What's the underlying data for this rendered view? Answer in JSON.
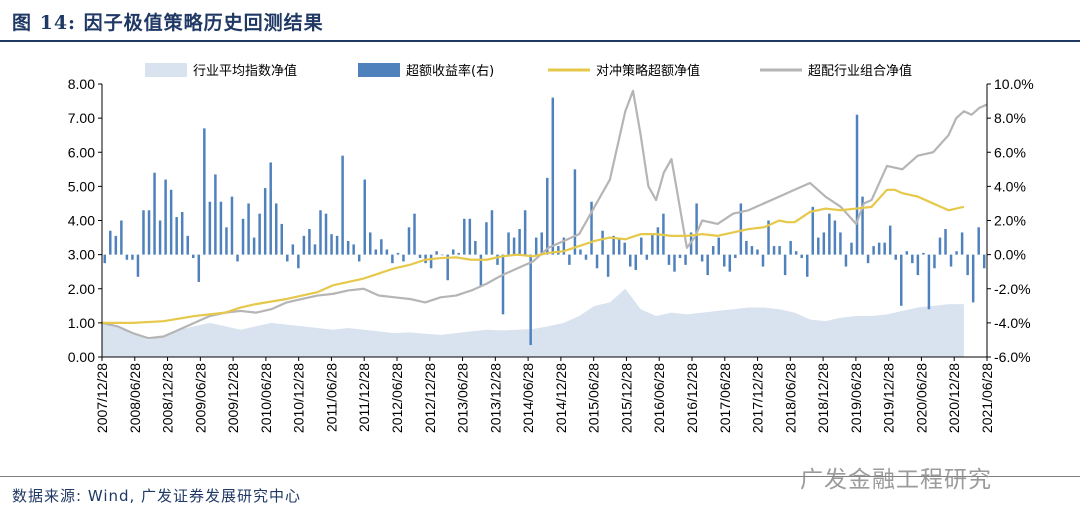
{
  "header": {
    "title": "图  14: 因子极值策略历史回测结果"
  },
  "footer": {
    "source": "数据来源: Wind, 广发证券发展研究中心",
    "watermark": "广发金融工程研究"
  },
  "colors": {
    "area": "#d9e3f0",
    "bar": "#4f81bd",
    "hedge_line": "#e6c84a",
    "industry_line": "#b5b5b5",
    "title": "#1f3864"
  },
  "chart_data": {
    "type": "line",
    "title": "",
    "x_start": "2007/12/28",
    "x_end": "2021/06/28",
    "x_tick_labels": [
      "2007/12/28",
      "2008/06/28",
      "2008/12/28",
      "2009/06/28",
      "2009/12/28",
      "2010/06/28",
      "2010/12/28",
      "2011/06/28",
      "2011/12/28",
      "2012/06/28",
      "2012/12/28",
      "2013/06/28",
      "2013/12/28",
      "2014/06/28",
      "2014/12/28",
      "2015/06/28",
      "2015/12/28",
      "2016/06/28",
      "2016/12/28",
      "2017/06/28",
      "2017/12/28",
      "2018/06/28",
      "2018/12/28",
      "2019/06/28",
      "2019/12/28",
      "2020/06/28",
      "2020/12/28",
      "2021/06/28"
    ],
    "y_left": {
      "min": 0,
      "max": 8,
      "ticks": [
        "0.00",
        "1.00",
        "2.00",
        "3.00",
        "4.00",
        "5.00",
        "6.00",
        "7.00",
        "8.00"
      ]
    },
    "y_right": {
      "min": -6,
      "max": 10,
      "ticks": [
        "-6.0%",
        "-4.0%",
        "-2.0%",
        "0.0%",
        "2.0%",
        "4.0%",
        "6.0%",
        "8.0%",
        "10.0%"
      ]
    },
    "legend_position": "top",
    "series": [
      {
        "name": "行业平均指数净值",
        "type": "area",
        "axis": "left",
        "points": [
          [
            0,
            1.0
          ],
          [
            2,
            0.9
          ],
          [
            4,
            0.7
          ],
          [
            6,
            0.5
          ],
          [
            8,
            0.6
          ],
          [
            10,
            0.8
          ],
          [
            12,
            0.9
          ],
          [
            14,
            1.0
          ],
          [
            16,
            0.9
          ],
          [
            18,
            0.8
          ],
          [
            20,
            0.9
          ],
          [
            22,
            1.0
          ],
          [
            24,
            0.95
          ],
          [
            26,
            0.9
          ],
          [
            28,
            0.85
          ],
          [
            30,
            0.8
          ],
          [
            32,
            0.85
          ],
          [
            34,
            0.8
          ],
          [
            36,
            0.75
          ],
          [
            38,
            0.7
          ],
          [
            40,
            0.72
          ],
          [
            42,
            0.68
          ],
          [
            44,
            0.65
          ],
          [
            46,
            0.7
          ],
          [
            48,
            0.75
          ],
          [
            50,
            0.8
          ],
          [
            52,
            0.78
          ],
          [
            54,
            0.8
          ],
          [
            56,
            0.82
          ],
          [
            58,
            0.9
          ],
          [
            60,
            1.0
          ],
          [
            62,
            1.2
          ],
          [
            64,
            1.5
          ],
          [
            66,
            1.6
          ],
          [
            68,
            2.0
          ],
          [
            69,
            1.7
          ],
          [
            70,
            1.4
          ],
          [
            72,
            1.2
          ],
          [
            74,
            1.3
          ],
          [
            76,
            1.25
          ],
          [
            78,
            1.3
          ],
          [
            80,
            1.35
          ],
          [
            82,
            1.4
          ],
          [
            84,
            1.45
          ],
          [
            86,
            1.45
          ],
          [
            88,
            1.4
          ],
          [
            90,
            1.3
          ],
          [
            92,
            1.1
          ],
          [
            94,
            1.05
          ],
          [
            96,
            1.15
          ],
          [
            98,
            1.2
          ],
          [
            100,
            1.2
          ],
          [
            102,
            1.25
          ],
          [
            104,
            1.35
          ],
          [
            106,
            1.45
          ],
          [
            108,
            1.5
          ],
          [
            110,
            1.55
          ],
          [
            112,
            1.55
          ]
        ]
      },
      {
        "name": "超额收益率(右)",
        "type": "bar",
        "axis": "right",
        "values": [
          -0.5,
          1.4,
          1.1,
          2.0,
          -0.3,
          -0.3,
          -1.3,
          2.6,
          2.6,
          4.8,
          2.0,
          4.4,
          3.8,
          2.2,
          2.5,
          1.1,
          -0.2,
          -1.6,
          7.4,
          3.1,
          4.7,
          3.1,
          1.6,
          3.4,
          -0.4,
          2.1,
          3.0,
          1.0,
          2.4,
          3.9,
          5.4,
          3.0,
          1.8,
          -0.4,
          0.6,
          -0.8,
          1.1,
          1.5,
          0.6,
          2.6,
          2.4,
          1.2,
          1.1,
          5.8,
          0.8,
          0.6,
          -0.4,
          4.4,
          1.3,
          0.3,
          0.9,
          0.3,
          -0.5,
          0.1,
          -0.4,
          1.6,
          2.4,
          -0.2,
          -0.5,
          -0.8,
          0.2,
          0.0,
          -1.5,
          0.3,
          0.1,
          2.1,
          2.1,
          0.8,
          -1.9,
          1.9,
          2.6,
          -0.6,
          -3.5,
          1.3,
          1.0,
          1.5,
          2.6,
          -5.3,
          1.0,
          1.3,
          4.5,
          9.2,
          0.5,
          1.0,
          -0.6,
          5.0,
          0.3,
          -0.3,
          3.1,
          -0.8,
          1.4,
          -1.3,
          1.1,
          0.9,
          0.7,
          -0.7,
          -0.9,
          1.0,
          -0.3,
          1.2,
          1.6,
          2.4,
          -0.6,
          -1.0,
          -0.2,
          -0.6,
          1.3,
          3.0,
          -0.4,
          -1.2,
          0.5,
          1.0,
          -0.7,
          -1.0,
          -0.2,
          3.0,
          0.8,
          0.5,
          0.3,
          -0.7,
          2.0,
          0.5,
          0.5,
          -1.2,
          0.8,
          0.2,
          -0.2,
          -1.3,
          2.8,
          1.0,
          1.3,
          2.4,
          2.0,
          1.3,
          -0.7,
          0.7,
          8.2,
          3.4,
          -0.5,
          0.5,
          0.7,
          0.7,
          1.7,
          -0.3,
          -3.0,
          0.2,
          -0.5,
          -1.2,
          0.1,
          -3.2,
          -0.8,
          1.0,
          1.5,
          -0.7,
          0.2,
          1.3,
          -1.2,
          -2.8,
          1.6,
          -0.8
        ]
      },
      {
        "name": "对冲策略超额净值",
        "type": "line",
        "axis": "left",
        "points": [
          [
            0,
            1.0
          ],
          [
            4,
            1.0
          ],
          [
            8,
            1.05
          ],
          [
            12,
            1.2
          ],
          [
            16,
            1.3
          ],
          [
            18,
            1.45
          ],
          [
            20,
            1.55
          ],
          [
            24,
            1.7
          ],
          [
            28,
            1.9
          ],
          [
            30,
            2.1
          ],
          [
            32,
            2.2
          ],
          [
            34,
            2.3
          ],
          [
            36,
            2.45
          ],
          [
            38,
            2.6
          ],
          [
            40,
            2.7
          ],
          [
            42,
            2.85
          ],
          [
            44,
            2.9
          ],
          [
            46,
            2.92
          ],
          [
            48,
            2.85
          ],
          [
            50,
            2.85
          ],
          [
            52,
            2.95
          ],
          [
            54,
            3.0
          ],
          [
            56,
            2.95
          ],
          [
            58,
            3.05
          ],
          [
            60,
            3.1
          ],
          [
            62,
            3.25
          ],
          [
            64,
            3.4
          ],
          [
            66,
            3.5
          ],
          [
            68,
            3.45
          ],
          [
            70,
            3.6
          ],
          [
            72,
            3.6
          ],
          [
            74,
            3.55
          ],
          [
            76,
            3.55
          ],
          [
            78,
            3.6
          ],
          [
            80,
            3.55
          ],
          [
            82,
            3.65
          ],
          [
            84,
            3.75
          ],
          [
            86,
            3.8
          ],
          [
            88,
            4.0
          ],
          [
            89,
            3.95
          ],
          [
            90,
            3.95
          ],
          [
            91,
            4.1
          ],
          [
            92,
            4.25
          ],
          [
            93,
            4.3
          ],
          [
            94,
            4.35
          ],
          [
            96,
            4.3
          ],
          [
            98,
            4.35
          ],
          [
            100,
            4.4
          ],
          [
            102,
            4.9
          ],
          [
            103,
            4.9
          ],
          [
            104,
            4.8
          ],
          [
            106,
            4.7
          ],
          [
            108,
            4.5
          ],
          [
            110,
            4.3
          ],
          [
            112,
            4.4
          ]
        ]
      },
      {
        "name": "超配行业组合净值",
        "type": "line",
        "axis": "left",
        "points": [
          [
            0,
            1.0
          ],
          [
            2,
            0.9
          ],
          [
            4,
            0.7
          ],
          [
            6,
            0.55
          ],
          [
            8,
            0.6
          ],
          [
            10,
            0.8
          ],
          [
            12,
            1.0
          ],
          [
            14,
            1.2
          ],
          [
            16,
            1.3
          ],
          [
            18,
            1.35
          ],
          [
            20,
            1.3
          ],
          [
            22,
            1.4
          ],
          [
            24,
            1.6
          ],
          [
            26,
            1.7
          ],
          [
            28,
            1.8
          ],
          [
            30,
            1.85
          ],
          [
            32,
            1.95
          ],
          [
            34,
            2.0
          ],
          [
            36,
            1.8
          ],
          [
            38,
            1.75
          ],
          [
            40,
            1.7
          ],
          [
            42,
            1.6
          ],
          [
            44,
            1.75
          ],
          [
            46,
            1.8
          ],
          [
            48,
            1.95
          ],
          [
            50,
            2.15
          ],
          [
            52,
            2.4
          ],
          [
            54,
            2.6
          ],
          [
            56,
            2.8
          ],
          [
            58,
            3.2
          ],
          [
            60,
            3.4
          ],
          [
            62,
            3.6
          ],
          [
            64,
            4.4
          ],
          [
            66,
            5.2
          ],
          [
            68,
            7.2
          ],
          [
            69,
            7.8
          ],
          [
            70,
            6.5
          ],
          [
            71,
            5.0
          ],
          [
            72,
            4.6
          ],
          [
            73,
            5.4
          ],
          [
            74,
            5.8
          ],
          [
            75,
            4.5
          ],
          [
            76,
            3.2
          ],
          [
            77,
            3.5
          ],
          [
            78,
            4.0
          ],
          [
            80,
            3.9
          ],
          [
            82,
            4.2
          ],
          [
            84,
            4.3
          ],
          [
            86,
            4.5
          ],
          [
            88,
            4.7
          ],
          [
            90,
            4.9
          ],
          [
            92,
            5.1
          ],
          [
            94,
            4.7
          ],
          [
            96,
            4.4
          ],
          [
            98,
            3.9
          ],
          [
            99,
            4.5
          ],
          [
            100,
            4.6
          ],
          [
            101,
            5.1
          ],
          [
            102,
            5.6
          ],
          [
            104,
            5.5
          ],
          [
            106,
            5.9
          ],
          [
            108,
            6.0
          ],
          [
            110,
            6.5
          ],
          [
            111,
            7.0
          ],
          [
            112,
            7.2
          ],
          [
            113,
            7.1
          ],
          [
            114,
            7.3
          ],
          [
            115,
            7.4
          ]
        ]
      }
    ]
  }
}
